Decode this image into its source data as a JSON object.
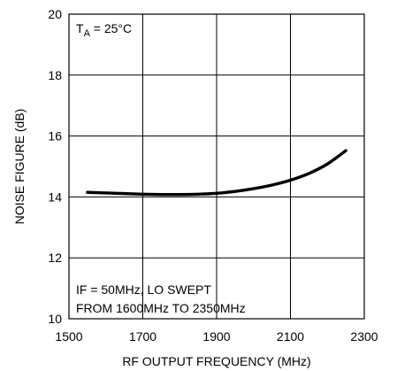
{
  "chart_data": {
    "type": "line",
    "xlabel": "RF OUTPUT FREQUENCY (MHz)",
    "ylabel": "NOISE FIGURE (dB)",
    "xlim": [
      1500,
      2300
    ],
    "ylim": [
      10,
      20
    ],
    "xticks": [
      1500,
      1700,
      1900,
      2100,
      2300
    ],
    "yticks": [
      10,
      12,
      14,
      16,
      18,
      20
    ],
    "grid": true,
    "annotation_ta": {
      "main": "T",
      "sub": "A",
      "rest": " = 25°C"
    },
    "annotation_conditions": [
      "IF = 50MHz, LO SWEPT",
      "FROM 1600MHz TO 2350MHz"
    ],
    "series": [
      {
        "x": [
          1550,
          1600,
          1650,
          1700,
          1750,
          1800,
          1850,
          1900,
          1950,
          2000,
          2050,
          2100,
          2150,
          2200,
          2250
        ],
        "y": [
          14.15,
          14.13,
          14.11,
          14.09,
          14.08,
          14.08,
          14.09,
          14.12,
          14.18,
          14.27,
          14.39,
          14.55,
          14.77,
          15.08,
          15.52
        ]
      }
    ]
  }
}
